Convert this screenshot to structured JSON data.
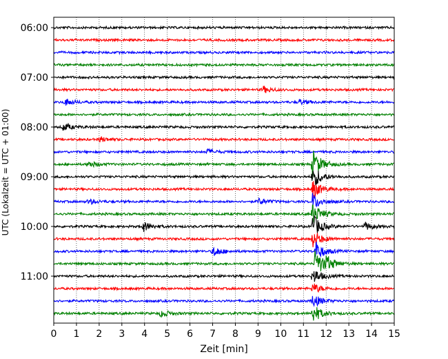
{
  "chart_data": {
    "type": "line",
    "title": "",
    "xlabel": "Zeit  [min]",
    "ylabel": "UTC (Lokalzeit = UTC + 01:00)",
    "xlim": [
      0,
      15
    ],
    "x_ticks": [
      "0",
      "1",
      "2",
      "3",
      "4",
      "5",
      "6",
      "7",
      "8",
      "9",
      "10",
      "11",
      "12",
      "13",
      "14",
      "15"
    ],
    "y_ticks": [
      "06:00",
      "07:00",
      "08:00",
      "09:00",
      "10:00",
      "11:00"
    ],
    "grid": "vertical dotted",
    "trace_interval_min": 15,
    "first_trace": "06:00",
    "colors": [
      "#000000",
      "#ff0000",
      "#0000ff",
      "#008000"
    ],
    "series": [
      {
        "start": "06:00",
        "color": "#000000",
        "events": []
      },
      {
        "start": "06:15",
        "color": "#ff0000",
        "events": []
      },
      {
        "start": "06:30",
        "color": "#0000ff",
        "events": []
      },
      {
        "start": "06:45",
        "color": "#008000",
        "events": []
      },
      {
        "start": "07:00",
        "color": "#000000",
        "events": []
      },
      {
        "start": "07:15",
        "color": "#ff0000",
        "events": [
          {
            "t": 9.2,
            "amp": 5
          }
        ]
      },
      {
        "start": "07:30",
        "color": "#0000ff",
        "events": [
          {
            "t": 0.5,
            "amp": 5
          },
          {
            "t": 10.8,
            "amp": 4
          }
        ]
      },
      {
        "start": "07:45",
        "color": "#008000",
        "events": []
      },
      {
        "start": "08:00",
        "color": "#000000",
        "events": [
          {
            "t": 0.4,
            "amp": 6
          }
        ]
      },
      {
        "start": "08:15",
        "color": "#ff0000",
        "events": [
          {
            "t": 2.0,
            "amp": 4
          }
        ]
      },
      {
        "start": "08:30",
        "color": "#0000ff",
        "events": [
          {
            "t": 6.7,
            "amp": 4
          }
        ]
      },
      {
        "start": "08:45",
        "color": "#008000",
        "events": [
          {
            "t": 1.5,
            "amp": 5
          },
          {
            "t": 11.4,
            "amp": 22
          }
        ]
      },
      {
        "start": "09:00",
        "color": "#000000",
        "events": [
          {
            "t": 11.4,
            "amp": 18
          }
        ]
      },
      {
        "start": "09:15",
        "color": "#ff0000",
        "events": [
          {
            "t": 11.4,
            "amp": 14
          }
        ]
      },
      {
        "start": "09:30",
        "color": "#0000ff",
        "events": [
          {
            "t": 1.5,
            "amp": 4
          },
          {
            "t": 9.0,
            "amp": 5
          },
          {
            "t": 11.4,
            "amp": 12
          }
        ]
      },
      {
        "start": "09:45",
        "color": "#008000",
        "events": [
          {
            "t": 11.4,
            "amp": 16
          }
        ]
      },
      {
        "start": "10:00",
        "color": "#000000",
        "events": [
          {
            "t": 3.9,
            "amp": 8
          },
          {
            "t": 13.7,
            "amp": 6
          },
          {
            "t": 11.4,
            "amp": 18
          }
        ]
      },
      {
        "start": "10:15",
        "color": "#ff0000",
        "events": [
          {
            "t": 11.4,
            "amp": 14
          }
        ]
      },
      {
        "start": "10:30",
        "color": "#0000ff",
        "events": [
          {
            "t": 7.0,
            "amp": 8
          },
          {
            "t": 11.5,
            "amp": 16
          }
        ]
      },
      {
        "start": "10:45",
        "color": "#008000",
        "events": [
          {
            "t": 11.5,
            "amp": 22
          },
          {
            "t": 12.0,
            "amp": 8
          }
        ]
      },
      {
        "start": "11:00",
        "color": "#000000",
        "events": [
          {
            "t": 11.4,
            "amp": 12
          }
        ]
      },
      {
        "start": "11:15",
        "color": "#ff0000",
        "events": [
          {
            "t": 11.4,
            "amp": 8
          }
        ]
      },
      {
        "start": "11:30",
        "color": "#0000ff",
        "events": [
          {
            "t": 11.4,
            "amp": 10
          }
        ]
      },
      {
        "start": "11:45",
        "color": "#008000",
        "events": [
          {
            "t": 4.7,
            "amp": 6
          },
          {
            "t": 11.4,
            "amp": 14
          }
        ]
      }
    ]
  }
}
